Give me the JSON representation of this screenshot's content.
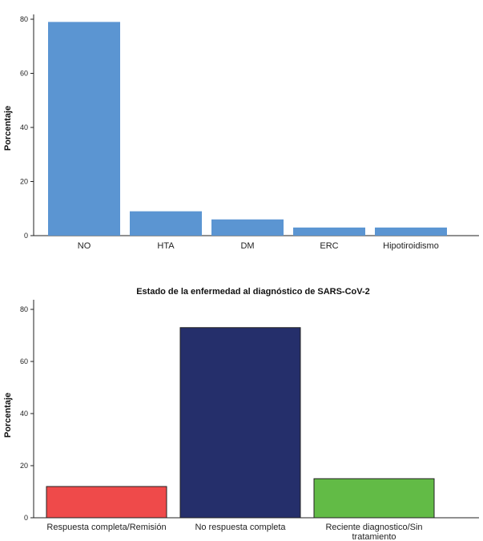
{
  "chart_data": [
    {
      "type": "bar",
      "title": "",
      "xlabel": "",
      "ylabel": "Porcentaje",
      "ylim": [
        0,
        80
      ],
      "yticks": [
        0,
        20,
        40,
        60,
        80
      ],
      "categories": [
        "NO",
        "HTA",
        "DM",
        "ERC",
        "Hipotiroidismo"
      ],
      "values": [
        79,
        9,
        6,
        3,
        3
      ],
      "colors": [
        "#5b95d2",
        "#5b95d2",
        "#5b95d2",
        "#5b95d2",
        "#5b95d2"
      ],
      "bar_outline": false,
      "grid": false,
      "legend": "none"
    },
    {
      "type": "bar",
      "title": "Estado de la enfermedad al diagnóstico de SARS-CoV-2",
      "xlabel": "",
      "ylabel": "Porcentaje",
      "ylim": [
        0,
        80
      ],
      "yticks": [
        0,
        20,
        40,
        60,
        80
      ],
      "categories": [
        [
          "Respuesta completa/Remisión"
        ],
        [
          "No respuesta completa"
        ],
        [
          "Reciente diagnostico/Sin",
          "tratamiento"
        ]
      ],
      "values": [
        12,
        73,
        15
      ],
      "colors": [
        "#ef4a4a",
        "#252f6b",
        "#62bb46"
      ],
      "bar_outline": true,
      "grid": false,
      "legend": "none"
    }
  ]
}
